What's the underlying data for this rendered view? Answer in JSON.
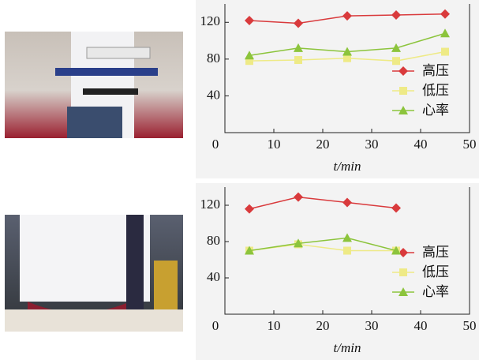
{
  "chart_data": [
    {
      "type": "line",
      "xlabel": "t/min",
      "x": [
        5,
        15,
        25,
        35,
        45
      ],
      "series": [
        {
          "name": "高压",
          "color": "#d93a3c",
          "marker": "diamond",
          "values": [
            122,
            119,
            127,
            128,
            129
          ]
        },
        {
          "name": "低压",
          "color": "#eeea86",
          "marker": "square",
          "values": [
            78,
            79,
            81,
            78,
            88
          ]
        },
        {
          "name": "心率",
          "color": "#8cc43c",
          "marker": "triangle",
          "values": [
            84,
            92,
            88,
            92,
            108
          ]
        }
      ],
      "xlim": [
        0,
        50
      ],
      "xticks": [
        0,
        10,
        20,
        30,
        40,
        50
      ],
      "ylim": [
        0,
        140
      ],
      "yticks": [
        40,
        80,
        120
      ],
      "legend": "lower right"
    },
    {
      "type": "line",
      "xlabel": "t/min",
      "x": [
        5,
        15,
        25,
        35
      ],
      "series": [
        {
          "name": "高压",
          "color": "#d93a3c",
          "marker": "diamond",
          "values": [
            116,
            129,
            123,
            117
          ]
        },
        {
          "name": "低压",
          "color": "#eeea86",
          "marker": "square",
          "values": [
            70,
            77,
            70,
            70
          ]
        },
        {
          "name": "心率",
          "color": "#8cc43c",
          "marker": "triangle",
          "values": [
            70,
            78,
            84,
            70
          ]
        }
      ],
      "xlim": [
        0,
        50
      ],
      "xticks": [
        0,
        10,
        20,
        30,
        40,
        50
      ],
      "ylim": [
        0,
        140
      ],
      "yticks": [
        40,
        80,
        120
      ],
      "legend": "lower right"
    }
  ]
}
